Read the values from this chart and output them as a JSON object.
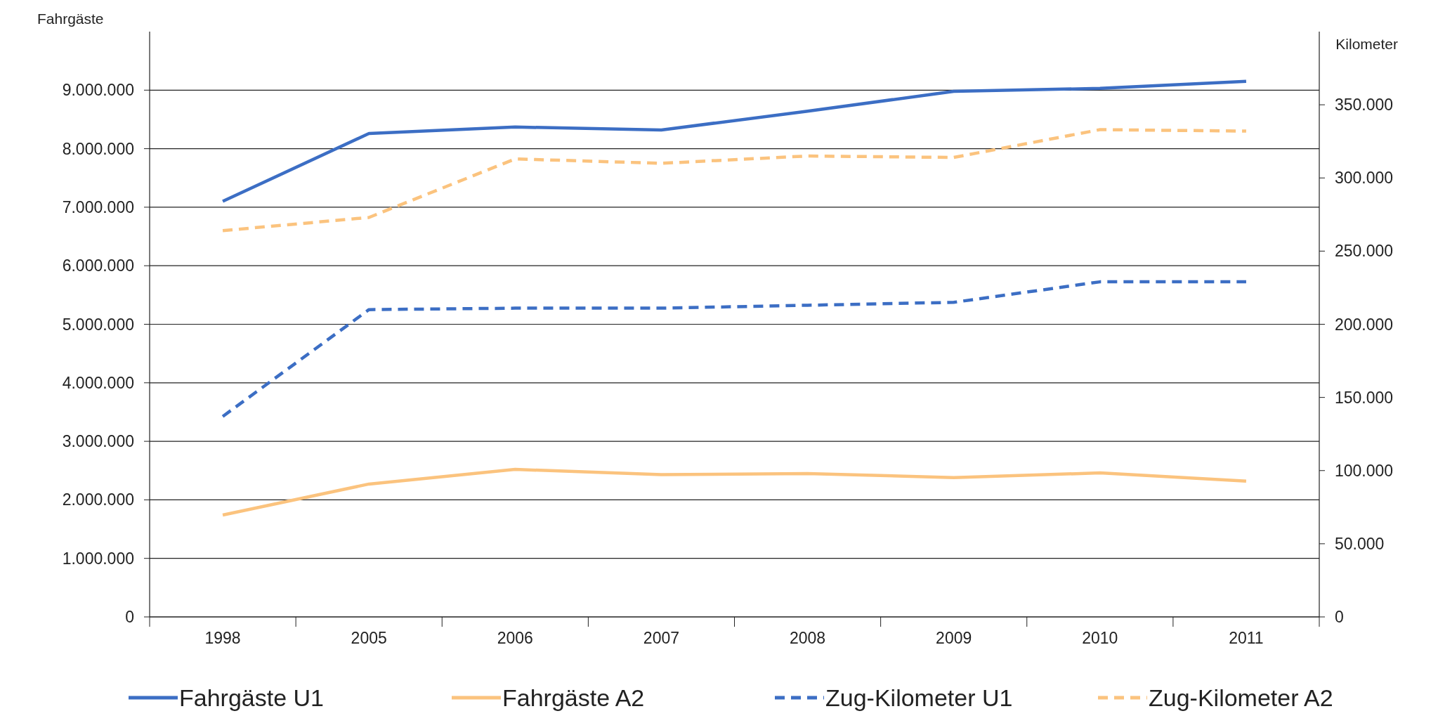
{
  "chart_data": {
    "type": "line",
    "ylabel": "Fahrgäste",
    "y2label": "Kilometer",
    "categories": [
      "1998",
      "2005",
      "2006",
      "2007",
      "2008",
      "2009",
      "2010",
      "2011"
    ],
    "series": [
      {
        "name": "Fahrgäste U1",
        "color": "#3c6ec4",
        "line_style": "solid",
        "values": [
          7100000,
          8260000,
          8370000,
          8320000,
          8640000,
          8980000,
          9030000,
          9150000
        ]
      },
      {
        "name": "Fahrgäste A2",
        "color": "#fbc37e",
        "line_style": "solid",
        "values": [
          1740000,
          2270000,
          2520000,
          2430000,
          2450000,
          2380000,
          2460000,
          2320000
        ]
      },
      {
        "name": "Zug-Kilometer U1",
        "color": "#3c6ec4",
        "line_style": "dashed",
        "axis": "y2",
        "values": [
          137000,
          210000,
          211000,
          211000,
          213000,
          215000,
          229000,
          229000
        ]
      },
      {
        "name": "Zug-Kilometer A2",
        "color": "#fbc37e",
        "line_style": "dashed",
        "axis": "y2",
        "values": [
          264000,
          273000,
          313000,
          310000,
          315000,
          314000,
          333000,
          332000
        ]
      }
    ],
    "ylim": [
      0,
      10000000
    ],
    "yticks": [
      0,
      {
        "value": 1000000,
        "label": "1.000.000"
      },
      {
        "value": 2000000,
        "label": "2.000.000"
      },
      {
        "value": 3000000,
        "label": "3.000.000"
      },
      {
        "value": 4000000,
        "label": "4.000.000"
      },
      {
        "value": 5000000,
        "label": "5.000.000"
      },
      {
        "value": 6000000,
        "label": "6.000.000"
      },
      {
        "value": 7000000,
        "label": "7.000.000"
      },
      {
        "value": 8000000,
        "label": "8.000.000"
      },
      {
        "value": 9000000,
        "label": "9.000.000"
      }
    ],
    "y2lim": [
      0,
      400000
    ],
    "y2ticks": [
      0,
      {
        "value": 50000,
        "label": "50.000"
      },
      {
        "value": 100000,
        "label": "100.000"
      },
      {
        "value": 150000,
        "label": "150.000"
      },
      {
        "value": 200000,
        "label": "200.000"
      },
      {
        "value": 250000,
        "label": "250.000"
      },
      {
        "value": 300000,
        "label": "300.000"
      },
      {
        "value": 350000,
        "label": "350.000"
      }
    ],
    "grid": "y",
    "legend": "bottom"
  }
}
